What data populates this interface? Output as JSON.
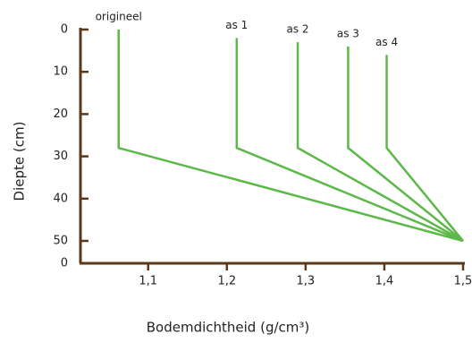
{
  "chart_data": {
    "type": "line",
    "xlabel": "Bodemdichtheid (g/cm³)",
    "ylabel": "Diepte (cm)",
    "origin_label": "0",
    "xlim": [
      1.014,
      1.5
    ],
    "ylim": [
      0,
      55.3
    ],
    "y_inverted": true,
    "xticks": [
      {
        "value": 1.1,
        "label": "1,1"
      },
      {
        "value": 1.2,
        "label": "1,2"
      },
      {
        "value": 1.3,
        "label": "1,3"
      },
      {
        "value": 1.4,
        "label": "1,4"
      },
      {
        "value": 1.5,
        "label": "1,5"
      }
    ],
    "yticks": [
      0,
      10,
      20,
      30,
      40,
      50
    ],
    "axis_color": "#5a3a1a",
    "series": [
      {
        "name": "origineel",
        "color": "#5cb848",
        "x": [
          1.0625,
          1.0625,
          1.5
        ],
        "values": [
          0,
          28,
          50
        ]
      },
      {
        "name": "as 1",
        "color": "#5cb848",
        "x": [
          1.2125,
          1.2125,
          1.5
        ],
        "values": [
          2,
          28,
          50
        ]
      },
      {
        "name": "as 2",
        "color": "#5cb848",
        "x": [
          1.29,
          1.29,
          1.5
        ],
        "values": [
          3,
          28,
          50
        ]
      },
      {
        "name": "as 3",
        "color": "#5cb848",
        "x": [
          1.354,
          1.354,
          1.5
        ],
        "values": [
          4,
          28,
          50
        ]
      },
      {
        "name": "as 4",
        "color": "#5cb848",
        "x": [
          1.403,
          1.403,
          1.5
        ],
        "values": [
          6,
          28,
          50
        ]
      }
    ]
  }
}
